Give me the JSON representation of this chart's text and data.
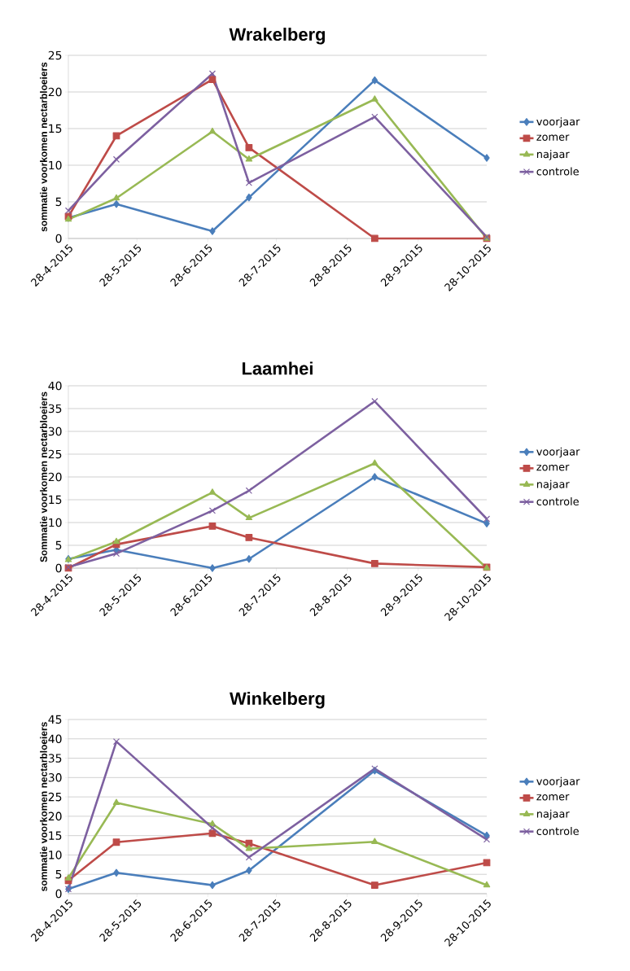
{
  "chart_data": [
    {
      "type": "line",
      "title": "Wrakelberg",
      "ylabel": "sommatie voorkomen nectarbloeiers",
      "x": [
        "2015-04-28",
        "2015-05-19",
        "2015-06-30",
        "2015-07-16",
        "2015-09-09",
        "2015-10-28"
      ],
      "xlim": [
        "2015-04-28",
        "2015-10-28"
      ],
      "xticks": [
        {
          "value": "2015-04-28",
          "label": "28-4-2015"
        },
        {
          "value": "2015-05-28",
          "label": "28-5-2015"
        },
        {
          "value": "2015-06-28",
          "label": "28-6-2015"
        },
        {
          "value": "2015-07-28",
          "label": "28-7-2015"
        },
        {
          "value": "2015-08-28",
          "label": "28-8-2015"
        },
        {
          "value": "2015-09-28",
          "label": "28-9-2015"
        },
        {
          "value": "2015-10-28",
          "label": "28-10-2015"
        }
      ],
      "ylim": [
        0,
        25
      ],
      "yticks": [
        0,
        5,
        10,
        15,
        20,
        25
      ],
      "grid": "y",
      "legend": "right",
      "series": [
        {
          "name": "voorjaar",
          "color": "#4a7ebb",
          "marker": "diamond",
          "values": [
            2.8,
            4.7,
            1.0,
            5.6,
            21.6,
            11.0
          ]
        },
        {
          "name": "zomer",
          "color": "#be4b48",
          "marker": "square",
          "values": [
            3.0,
            14.0,
            21.7,
            12.4,
            0,
            0
          ]
        },
        {
          "name": "najaar",
          "color": "#98b954",
          "marker": "triangle",
          "values": [
            2.6,
            5.5,
            14.6,
            10.8,
            19.0,
            0
          ]
        },
        {
          "name": "controle",
          "color": "#7d60a0",
          "marker": "cross",
          "values": [
            3.8,
            10.8,
            22.5,
            7.6,
            16.6,
            0.2
          ]
        }
      ]
    },
    {
      "type": "line",
      "title": "Laamhei",
      "ylabel": "Sommatie voorkomen nectarbloeiers",
      "x": [
        "2015-04-28",
        "2015-05-19",
        "2015-06-30",
        "2015-07-16",
        "2015-09-09",
        "2015-10-28"
      ],
      "xlim": [
        "2015-04-28",
        "2015-10-28"
      ],
      "xticks": [
        {
          "value": "2015-04-28",
          "label": "28-4-2015"
        },
        {
          "value": "2015-05-28",
          "label": "28-5-2015"
        },
        {
          "value": "2015-06-28",
          "label": "28-6-2015"
        },
        {
          "value": "2015-07-28",
          "label": "28-7-2015"
        },
        {
          "value": "2015-08-28",
          "label": "28-8-2015"
        },
        {
          "value": "2015-09-28",
          "label": "28-9-2015"
        },
        {
          "value": "2015-10-28",
          "label": "28-10-2015"
        }
      ],
      "ylim": [
        0,
        40
      ],
      "yticks": [
        0,
        5,
        10,
        15,
        20,
        25,
        30,
        35,
        40
      ],
      "grid": "y",
      "legend": "right",
      "series": [
        {
          "name": "voorjaar",
          "color": "#4a7ebb",
          "marker": "diamond",
          "values": [
            2.0,
            4.0,
            0,
            2.0,
            20.0,
            9.8
          ]
        },
        {
          "name": "zomer",
          "color": "#be4b48",
          "marker": "square",
          "values": [
            0,
            5.2,
            9.2,
            6.7,
            1.0,
            0.2
          ]
        },
        {
          "name": "najaar",
          "color": "#98b954",
          "marker": "triangle",
          "values": [
            1.8,
            5.8,
            16.6,
            11.0,
            23.0,
            0
          ]
        },
        {
          "name": "controle",
          "color": "#7d60a0",
          "marker": "cross",
          "values": [
            0.2,
            3.2,
            12.6,
            17.0,
            36.6,
            10.8
          ]
        }
      ]
    },
    {
      "type": "line",
      "title": "Winkelberg",
      "ylabel": "sommatie voorkomen nectarbloeiers",
      "x": [
        "2015-04-28",
        "2015-05-19",
        "2015-06-30",
        "2015-07-16",
        "2015-09-09",
        "2015-10-28"
      ],
      "xlim": [
        "2015-04-28",
        "2015-10-28"
      ],
      "xticks": [
        {
          "value": "2015-04-28",
          "label": "28-4-2015"
        },
        {
          "value": "2015-05-28",
          "label": "28-5-2015"
        },
        {
          "value": "2015-06-28",
          "label": "28-6-2015"
        },
        {
          "value": "2015-07-28",
          "label": "28-7-2015"
        },
        {
          "value": "2015-08-28",
          "label": "28-8-2015"
        },
        {
          "value": "2015-09-28",
          "label": "28-9-2015"
        },
        {
          "value": "2015-10-28",
          "label": "28-10-2015"
        }
      ],
      "ylim": [
        0,
        45
      ],
      "yticks": [
        0,
        5,
        10,
        15,
        20,
        25,
        30,
        35,
        40,
        45
      ],
      "grid": "y",
      "legend": "right",
      "series": [
        {
          "name": "voorjaar",
          "color": "#4a7ebb",
          "marker": "diamond",
          "values": [
            1.2,
            5.4,
            2.2,
            6.0,
            31.8,
            15.0
          ]
        },
        {
          "name": "zomer",
          "color": "#be4b48",
          "marker": "square",
          "values": [
            3.4,
            13.3,
            15.6,
            13.0,
            2.2,
            8.0
          ]
        },
        {
          "name": "najaar",
          "color": "#98b954",
          "marker": "triangle",
          "values": [
            4.0,
            23.5,
            18.0,
            11.6,
            13.4,
            2.2
          ]
        },
        {
          "name": "controle",
          "color": "#7d60a0",
          "marker": "cross",
          "values": [
            1.2,
            39.3,
            17.0,
            9.4,
            32.3,
            14.0
          ]
        }
      ]
    }
  ]
}
